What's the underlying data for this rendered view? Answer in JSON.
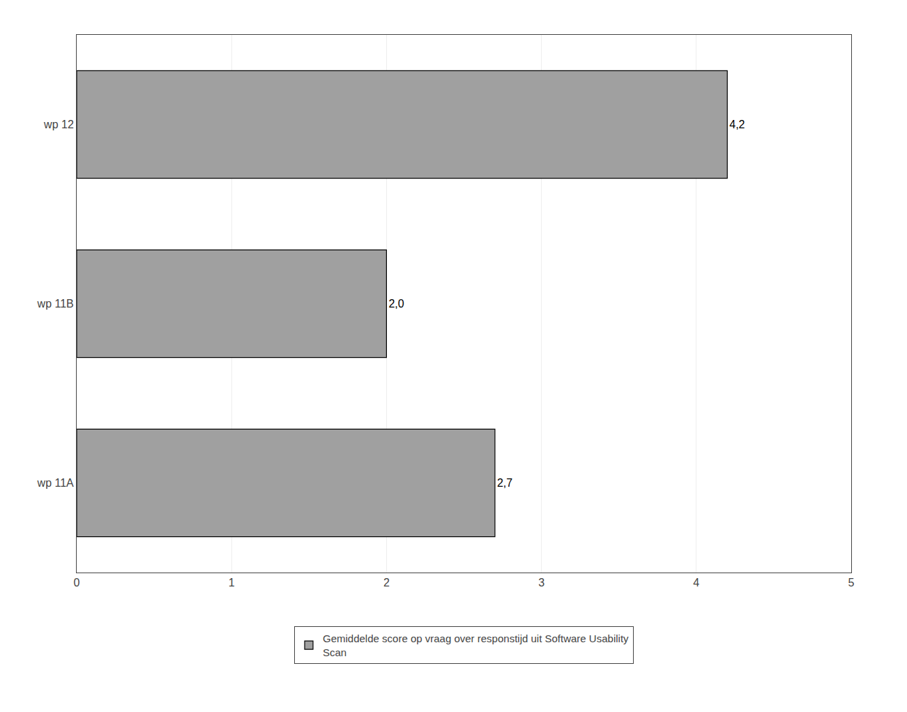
{
  "chart_data": {
    "type": "bar",
    "orientation": "horizontal",
    "categories": [
      "wp 12",
      "wp 11B",
      "wp 11A"
    ],
    "series": [
      {
        "name": "Gemiddelde score op vraag over responstijd uit Software Usability\nScan",
        "color": "#a0a0a0",
        "values": [
          4.2,
          2.0,
          2.7
        ],
        "value_labels": [
          "4,2",
          "2,0",
          "2,7"
        ]
      }
    ],
    "xlim": [
      0,
      5
    ],
    "xticks": [
      0,
      1,
      2,
      3,
      4,
      5
    ],
    "grid": true,
    "legend": "bottom",
    "data_labels": true
  }
}
